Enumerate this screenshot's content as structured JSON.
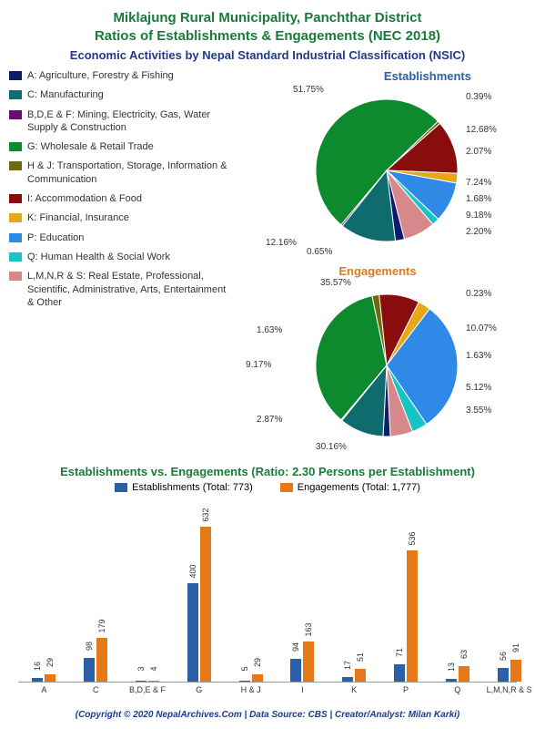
{
  "title_line1": "Miklajung Rural Municipality, Panchthar District",
  "title_line2": "Ratios of Establishments & Engagements (NEC 2018)",
  "subtitle": "Economic Activities by Nepal Standard Industrial Classification (NSIC)",
  "colors": {
    "title": "#1a7a3a",
    "subtitle": "#1e3a8a",
    "establishments_bar": "#2b5fa8",
    "engagements_bar": "#e77817",
    "footer": "#1e3a8a"
  },
  "categories": [
    {
      "code": "A",
      "label": "A: Agriculture, Forestry & Fishing",
      "color": "#0d1d6e"
    },
    {
      "code": "C",
      "label": "C: Manufacturing",
      "color": "#0e6b6e"
    },
    {
      "code": "B,D,E & F",
      "label": "B,D,E & F: Mining, Electricity, Gas, Water Supply & Construction",
      "color": "#6a0d6e"
    },
    {
      "code": "G",
      "label": "G: Wholesale & Retail Trade",
      "color": "#0d8a2e"
    },
    {
      "code": "H & J",
      "label": "H & J: Transportation, Storage, Information & Communication",
      "color": "#6e6a0d"
    },
    {
      "code": "I",
      "label": "I: Accommodation & Food",
      "color": "#8a0d0d"
    },
    {
      "code": "K",
      "label": "K: Financial, Insurance",
      "color": "#e6a817"
    },
    {
      "code": "P",
      "label": "P: Education",
      "color": "#2e8ae6"
    },
    {
      "code": "Q",
      "label": "Q: Human Health & Social Work",
      "color": "#17c4c4"
    },
    {
      "code": "L,M,N,R & S",
      "label": "L,M,N,R & S: Real Estate, Professional, Scientific, Administrative, Arts, Entertainment & Other",
      "color": "#d6888a"
    }
  ],
  "pie_establishments": {
    "title": "Establishments",
    "title_color": "#2b5fa8",
    "slices": [
      {
        "cat": "G",
        "pct": 51.75,
        "label": "51.75%"
      },
      {
        "cat": "H & J",
        "pct": 0.65,
        "label": "0.65%"
      },
      {
        "cat": "I",
        "pct": 12.16,
        "label": "12.16%"
      },
      {
        "cat": "K",
        "pct": 2.2,
        "label": "2.20%"
      },
      {
        "cat": "P",
        "pct": 9.18,
        "label": "9.18%"
      },
      {
        "cat": "Q",
        "pct": 1.68,
        "label": "1.68%"
      },
      {
        "cat": "L,M,N,R & S",
        "pct": 7.24,
        "label": "7.24%"
      },
      {
        "cat": "A",
        "pct": 2.07,
        "label": "2.07%"
      },
      {
        "cat": "C",
        "pct": 12.68,
        "label": "12.68%"
      },
      {
        "cat": "B,D,E & F",
        "pct": 0.39,
        "label": "0.39%"
      }
    ]
  },
  "pie_engagements": {
    "title": "Engagements",
    "title_color": "#e77817",
    "slices": [
      {
        "cat": "G",
        "pct": 35.57,
        "label": "35.57%"
      },
      {
        "cat": "H & J",
        "pct": 1.63,
        "label": "1.63%"
      },
      {
        "cat": "I",
        "pct": 9.17,
        "label": "9.17%"
      },
      {
        "cat": "K",
        "pct": 2.87,
        "label": "2.87%"
      },
      {
        "cat": "P",
        "pct": 30.16,
        "label": "30.16%"
      },
      {
        "cat": "Q",
        "pct": 3.55,
        "label": "3.55%"
      },
      {
        "cat": "L,M,N,R & S",
        "pct": 5.12,
        "label": "5.12%"
      },
      {
        "cat": "A",
        "pct": 1.63,
        "label": "1.63%"
      },
      {
        "cat": "C",
        "pct": 10.07,
        "label": "10.07%"
      },
      {
        "cat": "B,D,E & F",
        "pct": 0.23,
        "label": "0.23%"
      }
    ]
  },
  "bar_chart": {
    "title": "Establishments vs. Engagements (Ratio: 2.30 Persons per Establishment)",
    "legend_est": "Establishments (Total: 773)",
    "legend_eng": "Engagements (Total: 1,777)",
    "max_value": 632,
    "data": [
      {
        "cat": "A",
        "est": 16,
        "eng": 29
      },
      {
        "cat": "C",
        "est": 98,
        "eng": 179
      },
      {
        "cat": "B,D,E & F",
        "est": 3,
        "eng": 4
      },
      {
        "cat": "G",
        "est": 400,
        "eng": 632
      },
      {
        "cat": "H & J",
        "est": 5,
        "eng": 29
      },
      {
        "cat": "I",
        "est": 94,
        "eng": 163
      },
      {
        "cat": "K",
        "est": 17,
        "eng": 51
      },
      {
        "cat": "P",
        "est": 71,
        "eng": 536
      },
      {
        "cat": "Q",
        "est": 13,
        "eng": 63
      },
      {
        "cat": "L,M,N,R & S",
        "est": 56,
        "eng": 91
      }
    ]
  },
  "footer": "(Copyright © 2020 NepalArchives.Com | Data Source: CBS | Creator/Analyst: Milan Karki)"
}
